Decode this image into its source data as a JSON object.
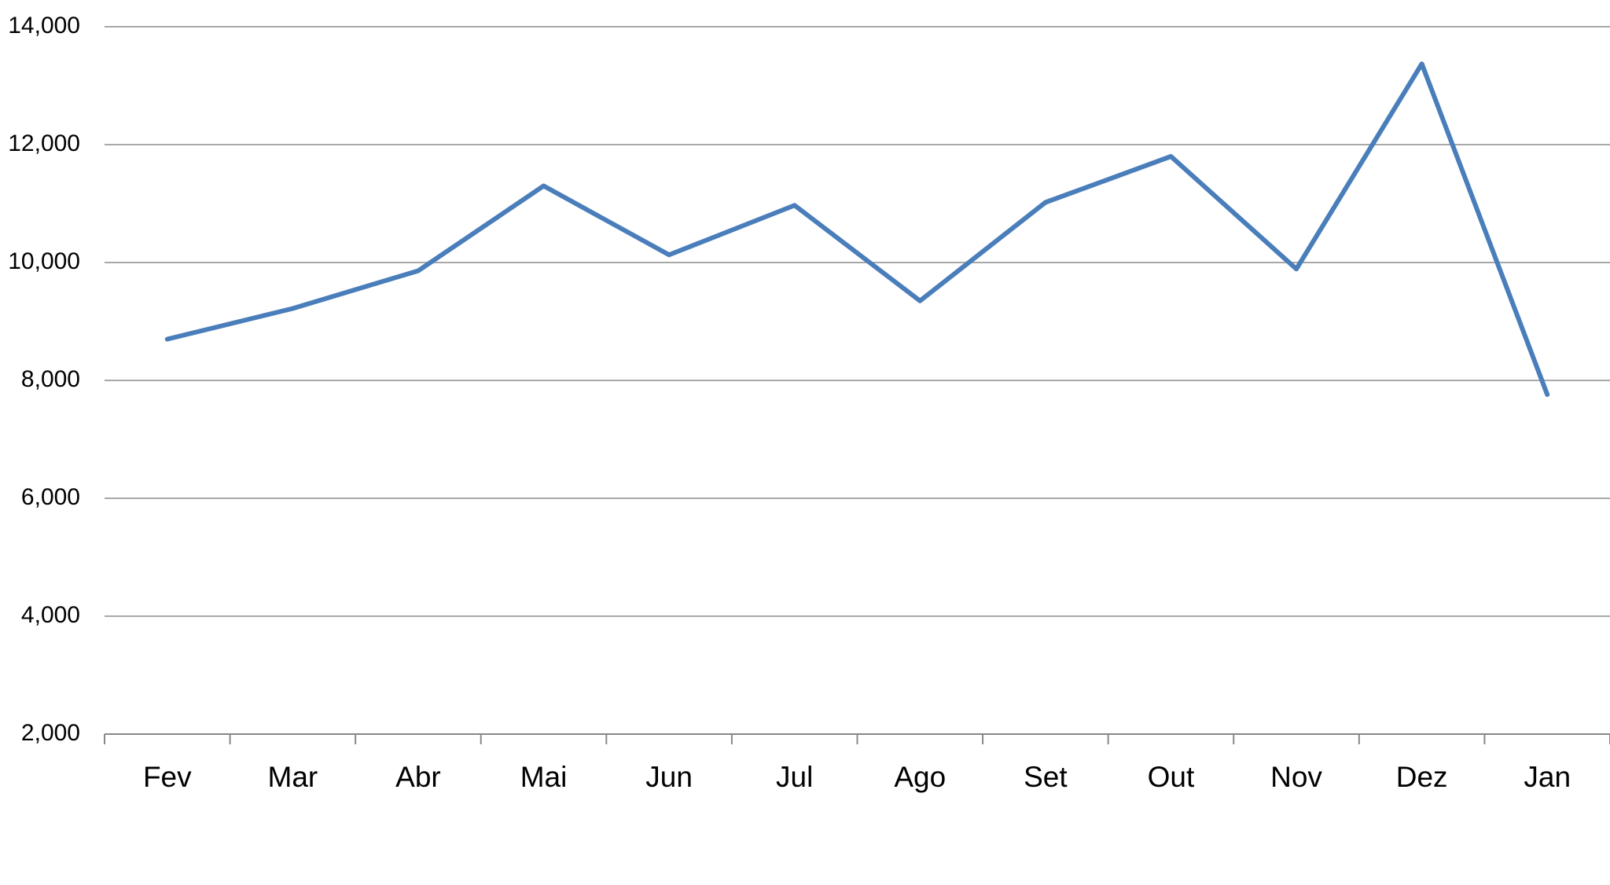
{
  "chart_data": {
    "type": "line",
    "categories": [
      "Fev",
      "Mar",
      "Abr",
      "Mai",
      "Jun",
      "Jul",
      "Ago",
      "Set",
      "Out",
      "Nov",
      "Dez",
      "Jan"
    ],
    "values": [
      8700,
      9220,
      9860,
      11300,
      10130,
      10970,
      9350,
      11020,
      11800,
      9890,
      13370,
      7760
    ],
    "color": "#4a7ebb",
    "ylim": [
      2000,
      14000
    ],
    "yticks": [
      {
        "value": 2000,
        "label": "2,000"
      },
      {
        "value": 4000,
        "label": "4,000"
      },
      {
        "value": 6000,
        "label": "6,000"
      },
      {
        "value": 8000,
        "label": "8,000"
      },
      {
        "value": 10000,
        "label": "10,000"
      },
      {
        "value": 12000,
        "label": "12,000"
      },
      {
        "value": 14000,
        "label": "14,000"
      }
    ],
    "grid": true
  }
}
